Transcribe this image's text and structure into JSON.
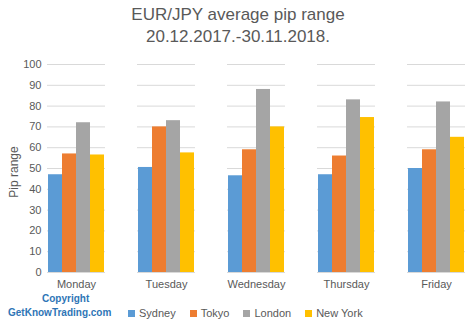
{
  "chart_data": {
    "type": "bar",
    "title": "EUR/JPY average pip range 20.12.2017.-30.11.2018.",
    "y_label": "Pip range",
    "categories": [
      "Monday",
      "Tuesday",
      "Wednesday",
      "Thursday",
      "Friday"
    ],
    "series": [
      {
        "name": "Sydney",
        "color": "#5b9bd5",
        "values": [
          47,
          50.5,
          46.5,
          47,
          50
        ]
      },
      {
        "name": "Tokyo",
        "color": "#ed7d31",
        "values": [
          57,
          70,
          59,
          56,
          59
        ]
      },
      {
        "name": "London",
        "color": "#a5a5a5",
        "values": [
          72,
          73,
          88,
          83,
          82
        ]
      },
      {
        "name": "New York",
        "color": "#ffc000",
        "values": [
          56.5,
          57.5,
          70,
          74.5,
          65
        ]
      }
    ],
    "ylim": [
      0,
      100
    ],
    "yticks": [
      0,
      10,
      20,
      30,
      40,
      50,
      60,
      70,
      80,
      90,
      100
    ],
    "grid": true,
    "legend": "bottom",
    "annotations": [
      "Copyright",
      "GetKnowTrading.com"
    ]
  }
}
